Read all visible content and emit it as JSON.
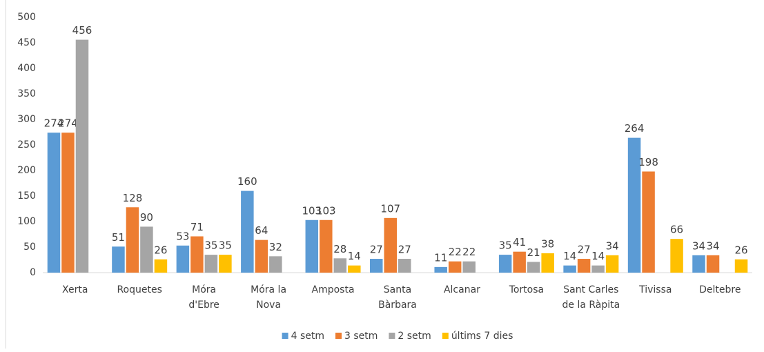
{
  "chart_data": {
    "type": "bar",
    "categories": [
      "Xerta",
      "Roquetes",
      "Móra d'Ebre",
      "Móra la Nova",
      "Amposta",
      "Santa Bàrbara",
      "Alcanar",
      "Tortosa",
      "Sant Carles de la Ràpita",
      "Tivissa",
      "Deltebre"
    ],
    "series": [
      {
        "name": "4 setm",
        "color": "#5b9bd5",
        "values": [
          274,
          51,
          53,
          160,
          103,
          27,
          11,
          35,
          14,
          264,
          34
        ]
      },
      {
        "name": "3 setm",
        "color": "#ed7d31",
        "values": [
          274,
          128,
          71,
          64,
          103,
          107,
          22,
          41,
          27,
          198,
          34
        ]
      },
      {
        "name": "2 setm",
        "color": "#a5a5a5",
        "values": [
          456,
          90,
          35,
          32,
          28,
          27,
          22,
          21,
          14,
          null,
          null
        ]
      },
      {
        "name": "últims 7 dies",
        "color": "#ffc000",
        "values": [
          null,
          26,
          35,
          null,
          14,
          null,
          null,
          38,
          34,
          66,
          26
        ]
      }
    ],
    "ylim": [
      0,
      500
    ],
    "yticks": [
      0,
      50,
      100,
      150,
      200,
      250,
      300,
      350,
      400,
      450,
      500
    ],
    "grid": false,
    "legend": "bottom"
  }
}
